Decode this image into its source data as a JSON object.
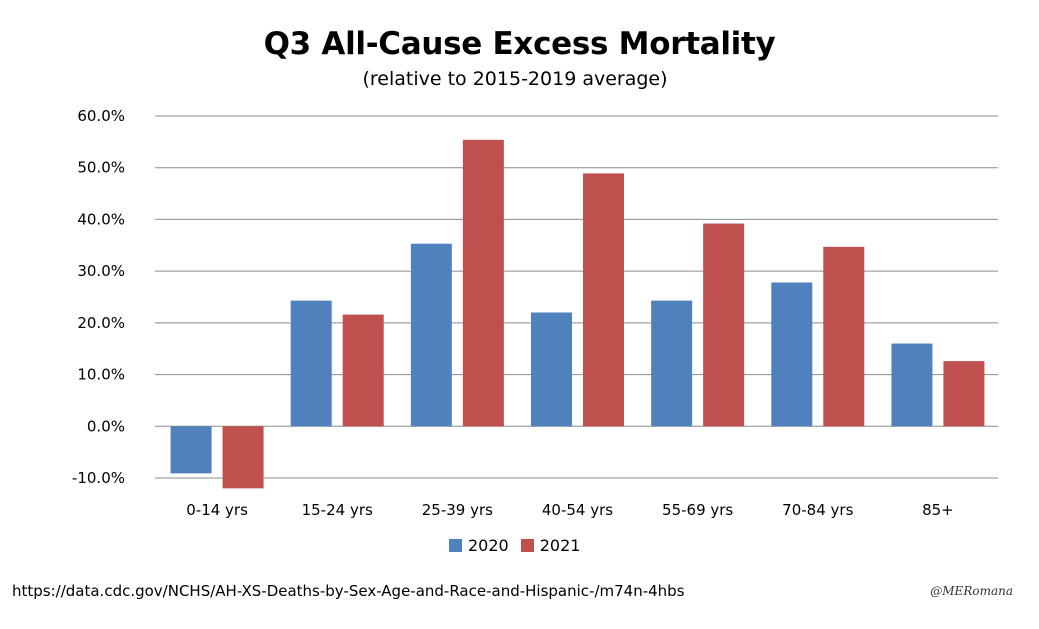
{
  "title": "Q3 All-Cause Excess Mortality",
  "subtitle": "(relative to 2015-2019 average)",
  "source": "https://data.cdc.gov/NCHS/AH-XS-Deaths-by-Sex-Age-and-Race-and-Hispanic-/m74n-4hbs",
  "signature": "@MERomana",
  "legend": [
    {
      "name": "2020",
      "color": "#4f81bd"
    },
    {
      "name": "2021",
      "color": "#c0504d"
    }
  ],
  "chart_data": {
    "type": "bar",
    "title": "Q3 All-Cause Excess Mortality",
    "subtitle": "(relative to 2015-2019 average)",
    "xlabel": "",
    "ylabel": "",
    "categories": [
      "0-14 yrs",
      "15-24 yrs",
      "25-39 yrs",
      "40-54 yrs",
      "55-69 yrs",
      "70-84 yrs",
      "85+"
    ],
    "series": [
      {
        "name": "2020",
        "color": "#4f81bd",
        "values": [
          -9.1,
          24.3,
          35.3,
          22.0,
          24.3,
          27.8,
          16.0
        ]
      },
      {
        "name": "2021",
        "color": "#c0504d",
        "values": [
          -12.0,
          21.6,
          55.4,
          48.9,
          39.2,
          34.7,
          12.6
        ]
      }
    ],
    "ylim": [
      -10,
      60
    ],
    "yticks": [
      -10,
      0,
      10,
      20,
      30,
      40,
      50,
      60
    ],
    "ytick_labels": [
      "-10.0%",
      "0.0%",
      "10.0%",
      "20.0%",
      "30.0%",
      "40.0%",
      "50.0%",
      "60.0%"
    ],
    "grid": true,
    "legend_position": "bottom"
  }
}
